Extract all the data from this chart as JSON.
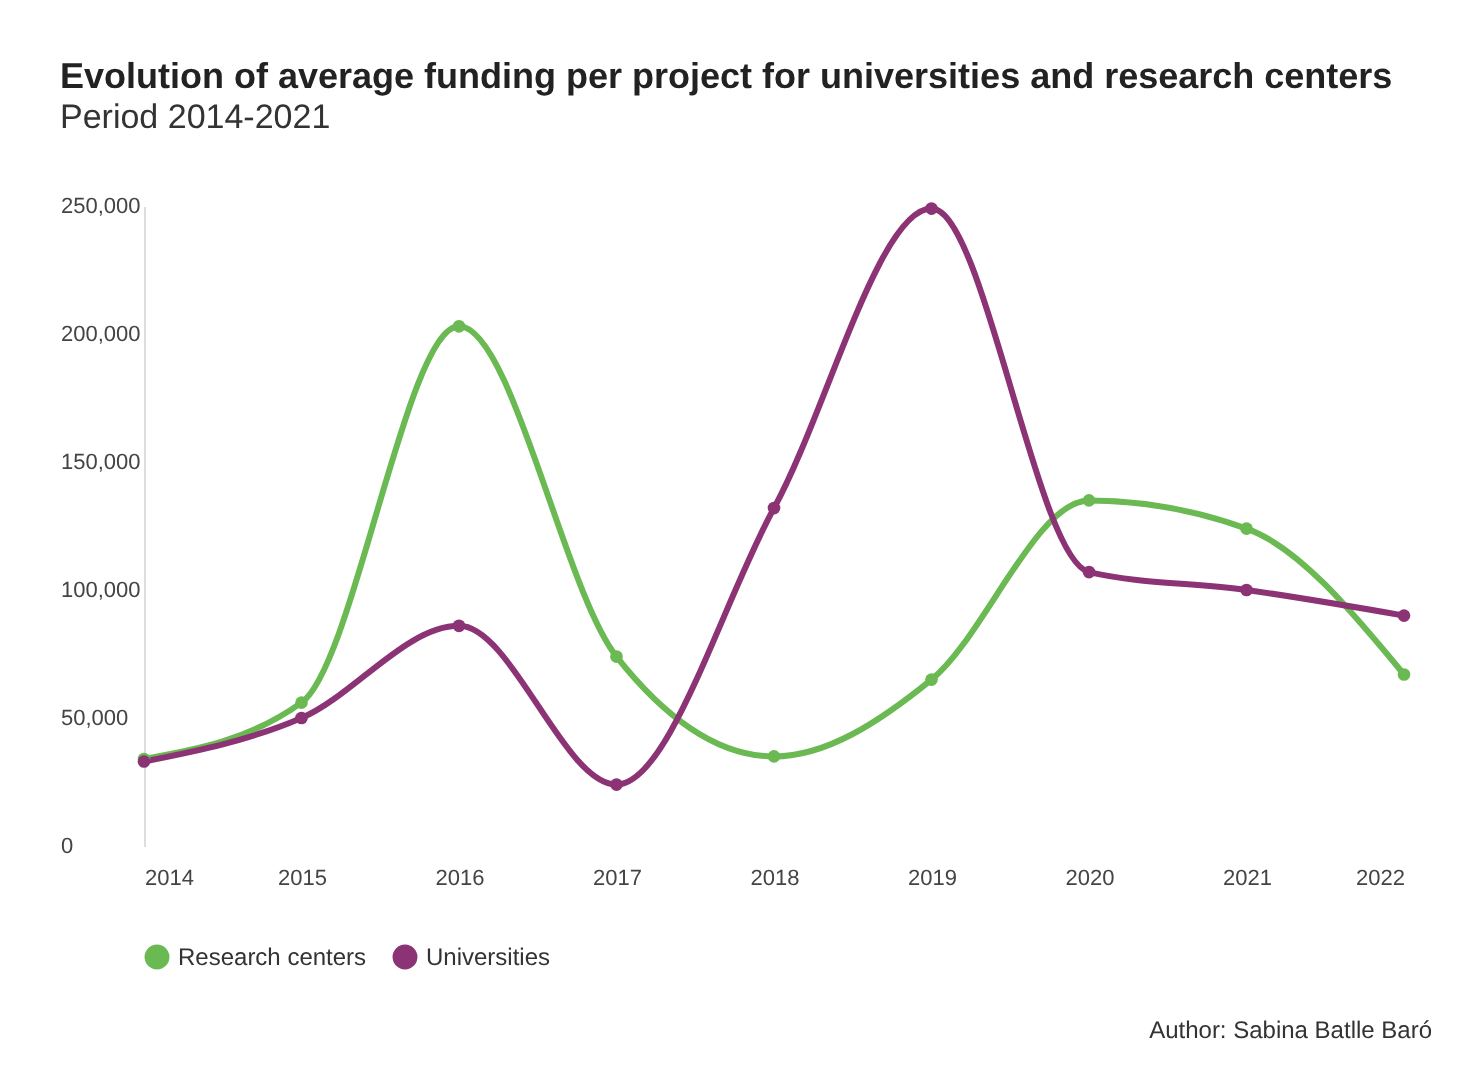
{
  "chart_data": {
    "type": "line",
    "title": "Evolution of average funding per project for universities and research centers",
    "subtitle": "Period 2014-2021",
    "x": [
      2014,
      2015,
      2016,
      2017,
      2018,
      2019,
      2020,
      2021,
      2022
    ],
    "xlim": [
      2014,
      2022
    ],
    "xticks": [
      2014,
      2015,
      2016,
      2017,
      2018,
      2019,
      2020,
      2021,
      2022
    ],
    "ylim": [
      0,
      250000
    ],
    "yticks": [
      0,
      {
        "value": 50000,
        "label": "50,000"
      },
      {
        "value": 100000,
        "label": "100,000"
      },
      {
        "value": 150000,
        "label": "150,000"
      },
      {
        "value": 200000,
        "label": "200,000"
      },
      {
        "value": 250000,
        "label": "250,000"
      }
    ],
    "series": [
      {
        "name": "Research centers",
        "color": "#6ab952",
        "values": [
          34000,
          56000,
          203000,
          74000,
          35000,
          65000,
          135000,
          124000,
          67000
        ]
      },
      {
        "name": "Universities",
        "color": "#8b3374",
        "values": [
          33000,
          50000,
          86000,
          24000,
          132000,
          249000,
          107000,
          100000,
          90000
        ]
      }
    ],
    "grid": false,
    "legend": "bottom left",
    "marker": "circle",
    "line_style": "solid",
    "annotations": [
      "Author: Sabina Batlle Baró"
    ]
  }
}
